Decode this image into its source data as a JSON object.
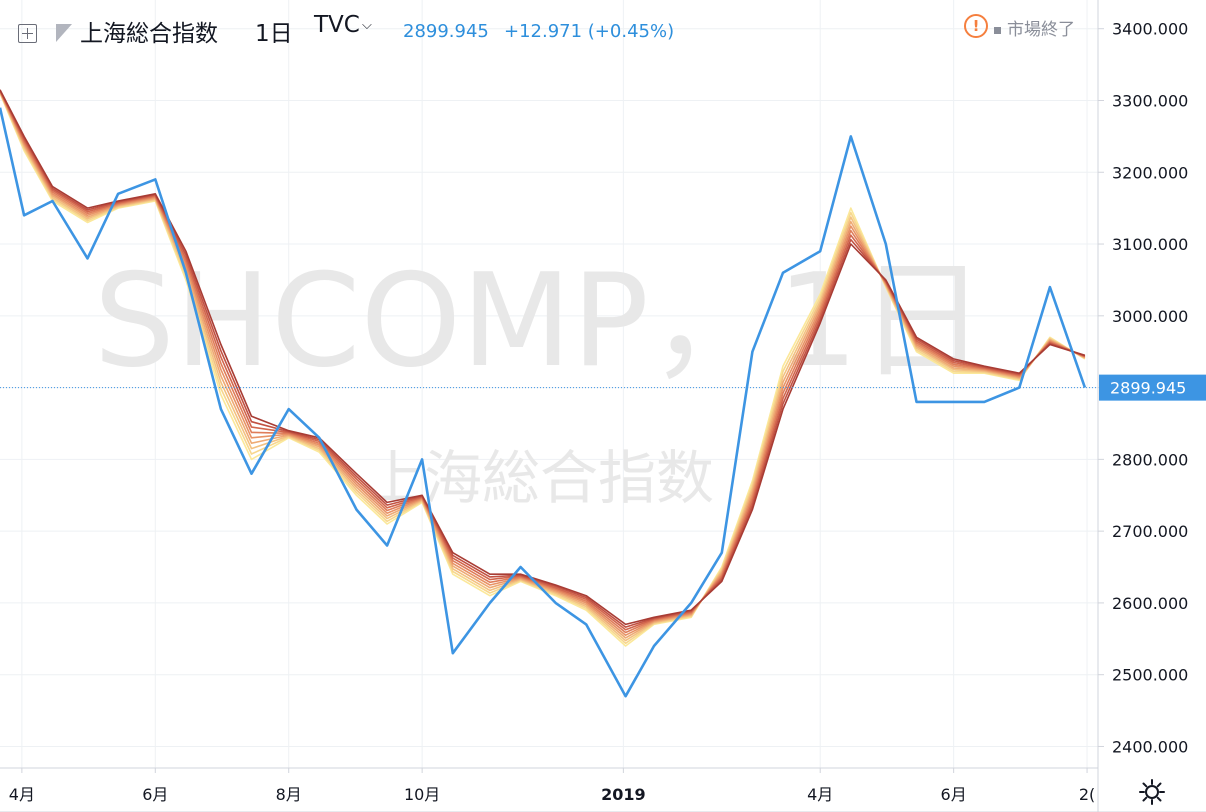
{
  "header": {
    "symbol": "上海総合指数",
    "interval": "1日",
    "exchange": "TVC",
    "price": "2899.945",
    "change": "+12.971 (+0.45%)",
    "market_status": "市場終了"
  },
  "watermark": {
    "symbol": "SHCOMP，1日",
    "name": "上海総合指数"
  },
  "colors": {
    "price_line": "#3d95e3",
    "ribbon": [
      "#fbe89a",
      "#f7d78e",
      "#f3c181",
      "#eeaa74",
      "#e89366",
      "#df7d5a",
      "#d2664d",
      "#c25142",
      "#a83c34"
    ],
    "price_label_bg": "#3d95e3",
    "grid": "#eef1f4"
  },
  "chart_data": {
    "type": "line",
    "title": "上海総合指数",
    "y_axis_ticks": [
      "3400.000",
      "3300.000",
      "3200.000",
      "3100.000",
      "3000.000",
      "2900.000",
      "2800.000",
      "2700.000",
      "2600.000",
      "2500.000",
      "2400.000"
    ],
    "ylim": [
      2370,
      3440
    ],
    "x_axis_ticks": [
      "4月",
      "6月",
      "8月",
      "10月",
      "2019",
      "4月",
      "6月",
      "2("
    ],
    "last_price_label": "2899.945",
    "x": [
      "2018-03-22",
      "2018-04-02",
      "2018-04-15",
      "2018-05-01",
      "2018-05-15",
      "2018-06-01",
      "2018-06-15",
      "2018-07-01",
      "2018-07-15",
      "2018-08-01",
      "2018-08-15",
      "2018-09-01",
      "2018-09-15",
      "2018-10-01",
      "2018-10-15",
      "2018-11-01",
      "2018-11-15",
      "2018-12-01",
      "2018-12-15",
      "2019-01-02",
      "2019-01-15",
      "2019-02-01",
      "2019-02-15",
      "2019-03-01",
      "2019-03-15",
      "2019-04-01",
      "2019-04-15",
      "2019-05-01",
      "2019-05-15",
      "2019-06-01",
      "2019-06-15",
      "2019-07-01",
      "2019-07-15",
      "2019-07-31"
    ],
    "series": [
      {
        "values": [
          3290,
          3140,
          3160,
          3080,
          3170,
          3190,
          3060,
          2870,
          2780,
          2870,
          2830,
          2730,
          2680,
          2800,
          2530,
          2600,
          2650,
          2600,
          2570,
          2470,
          2540,
          2600,
          2670,
          2950,
          3060,
          3090,
          3250,
          3100,
          2880,
          2880,
          2880,
          2900,
          3040,
          2900
        ]
      },
      {
        "values": [
          3310,
          3230,
          3160,
          3130,
          3150,
          3160,
          3050,
          2890,
          2800,
          2830,
          2810,
          2750,
          2710,
          2740,
          2640,
          2610,
          2630,
          2610,
          2590,
          2540,
          2570,
          2580,
          2650,
          2770,
          2930,
          3030,
          3150,
          3040,
          2950,
          2920,
          2920,
          2910,
          2970,
          2940
        ]
      },
      {
        "values": [
          3315,
          3250,
          3180,
          3150,
          3160,
          3170,
          3090,
          2960,
          2860,
          2840,
          2830,
          2780,
          2740,
          2750,
          2670,
          2640,
          2640,
          2625,
          2610,
          2570,
          2580,
          2590,
          2630,
          2730,
          2870,
          2990,
          3100,
          3050,
          2970,
          2940,
          2930,
          2920,
          2960,
          2945
        ]
      }
    ]
  }
}
